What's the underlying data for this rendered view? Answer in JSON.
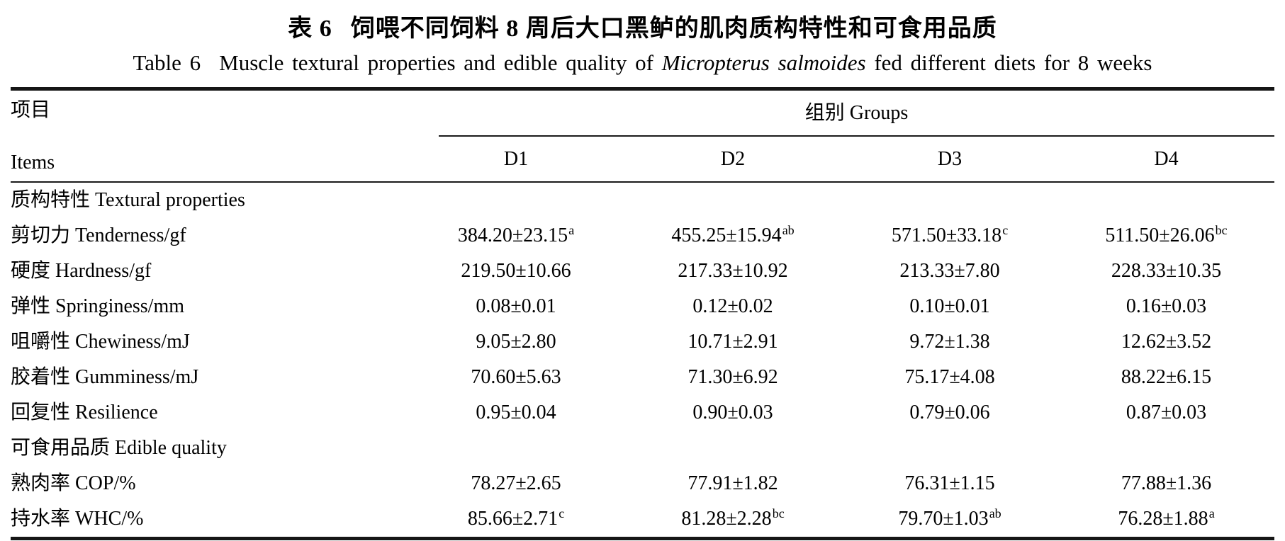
{
  "titles": {
    "cn": {
      "label": "表 6",
      "text": "饲喂不同饲料 8 周后大口黑鲈的肌肉质构特性和可食用品质"
    },
    "en": {
      "label": "Table 6",
      "prefix": "Muscle textural properties and edible quality of ",
      "italic": "Micropterus salmoides",
      "suffix": " fed different diets for 8 weeks"
    }
  },
  "table": {
    "header": {
      "items_cn": "项目",
      "items_en": "Items",
      "groups": "组别 Groups",
      "columns": [
        "D1",
        "D2",
        "D3",
        "D4"
      ]
    },
    "rows": [
      {
        "section": true,
        "label": "质构特性 Textural properties"
      },
      {
        "label": "剪切力 Tenderness/gf",
        "values": [
          {
            "v": "384.20±23.15",
            "sup": "a"
          },
          {
            "v": "455.25±15.94",
            "sup": "ab"
          },
          {
            "v": "571.50±33.18",
            "sup": "c"
          },
          {
            "v": "511.50±26.06",
            "sup": "bc"
          }
        ]
      },
      {
        "label": "硬度 Hardness/gf",
        "values": [
          {
            "v": "219.50±10.66"
          },
          {
            "v": "217.33±10.92"
          },
          {
            "v": "213.33±7.80"
          },
          {
            "v": "228.33±10.35"
          }
        ]
      },
      {
        "label": "弹性 Springiness/mm",
        "values": [
          {
            "v": "0.08±0.01"
          },
          {
            "v": "0.12±0.02"
          },
          {
            "v": "0.10±0.01"
          },
          {
            "v": "0.16±0.03"
          }
        ]
      },
      {
        "label": "咀嚼性 Chewiness/mJ",
        "values": [
          {
            "v": "9.05±2.80"
          },
          {
            "v": "10.71±2.91"
          },
          {
            "v": "9.72±1.38"
          },
          {
            "v": "12.62±3.52"
          }
        ]
      },
      {
        "label": "胶着性 Gumminess/mJ",
        "values": [
          {
            "v": "70.60±5.63"
          },
          {
            "v": "71.30±6.92"
          },
          {
            "v": "75.17±4.08"
          },
          {
            "v": "88.22±6.15"
          }
        ]
      },
      {
        "label": "回复性 Resilience",
        "values": [
          {
            "v": "0.95±0.04"
          },
          {
            "v": "0.90±0.03"
          },
          {
            "v": "0.79±0.06"
          },
          {
            "v": "0.87±0.03"
          }
        ]
      },
      {
        "section": true,
        "label": "可食用品质 Edible quality"
      },
      {
        "label": "熟肉率 COP/%",
        "values": [
          {
            "v": "78.27±2.65"
          },
          {
            "v": "77.91±1.82"
          },
          {
            "v": "76.31±1.15"
          },
          {
            "v": "77.88±1.36"
          }
        ]
      },
      {
        "label": "持水率 WHC/%",
        "values": [
          {
            "v": "85.66±2.71",
            "sup": "c"
          },
          {
            "v": "81.28±2.28",
            "sup": "bc"
          },
          {
            "v": "79.70±1.03",
            "sup": "ab"
          },
          {
            "v": "76.28±1.88",
            "sup": "a"
          }
        ]
      }
    ]
  },
  "chart_data": {
    "type": "table",
    "title": "表 6 饲喂不同饲料 8 周后大口黑鲈的肌肉质构特性和可食用品质 / Table 6 Muscle textural properties and edible quality of Micropterus salmoides fed different diets for 8 weeks",
    "columns": [
      "Items",
      "D1",
      "D2",
      "D3",
      "D4"
    ],
    "rows": [
      [
        "质构特性 Textural properties",
        "",
        "",
        "",
        ""
      ],
      [
        "剪切力 Tenderness/gf",
        "384.20±23.15a",
        "455.25±15.94ab",
        "571.50±33.18c",
        "511.50±26.06bc"
      ],
      [
        "硬度 Hardness/gf",
        "219.50±10.66",
        "217.33±10.92",
        "213.33±7.80",
        "228.33±10.35"
      ],
      [
        "弹性 Springiness/mm",
        "0.08±0.01",
        "0.12±0.02",
        "0.10±0.01",
        "0.16±0.03"
      ],
      [
        "咀嚼性 Chewiness/mJ",
        "9.05±2.80",
        "10.71±2.91",
        "9.72±1.38",
        "12.62±3.52"
      ],
      [
        "胶着性 Gumminess/mJ",
        "70.60±5.63",
        "71.30±6.92",
        "75.17±4.08",
        "88.22±6.15"
      ],
      [
        "回复性 Resilience",
        "0.95±0.04",
        "0.90±0.03",
        "0.79±0.06",
        "0.87±0.03"
      ],
      [
        "可食用品质 Edible quality",
        "",
        "",
        "",
        ""
      ],
      [
        "熟肉率 COP/%",
        "78.27±2.65",
        "77.91±1.82",
        "76.31±1.15",
        "77.88±1.36"
      ],
      [
        "持水率 WHC/%",
        "85.66±2.71c",
        "81.28±2.28bc",
        "79.70±1.03ab",
        "76.28±1.88a"
      ]
    ]
  }
}
